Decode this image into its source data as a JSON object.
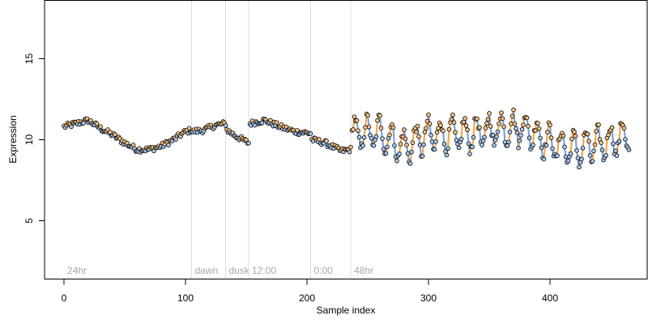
{
  "chart_data": {
    "type": "scatter",
    "title": "",
    "xlabel": "Sample index",
    "ylabel": "Expression",
    "xlim": [
      -16,
      480
    ],
    "ylim": [
      1.4,
      18.6
    ],
    "xticks": [
      0,
      100,
      200,
      300,
      400
    ],
    "yticks": [
      5,
      10,
      15
    ],
    "grid": false,
    "legend": "none",
    "colors": {
      "point_high": "#f5c285",
      "point_low": "#a8c8ec",
      "segment_up": "#f0a850",
      "segment_down": "#7ea4d8",
      "region_line": "#dcdcdc",
      "region_label": "#a8a8a8"
    },
    "regions": [
      {
        "x": 0,
        "label": "24hr"
      },
      {
        "x": 105,
        "label": "dawn"
      },
      {
        "x": 133,
        "label": "dusk"
      },
      {
        "x": 152,
        "label": "12:00"
      },
      {
        "x": 203,
        "label": "0:00"
      },
      {
        "x": 236,
        "label": "48hr"
      }
    ],
    "segments": [
      {
        "x0": 0,
        "x1": 105,
        "anchors": [
          [
            0,
            10.8
          ],
          [
            10,
            11.0
          ],
          [
            20,
            11.2
          ],
          [
            30,
            10.7
          ],
          [
            40,
            10.3
          ],
          [
            50,
            9.8
          ],
          [
            60,
            9.4
          ],
          [
            70,
            9.4
          ],
          [
            80,
            9.6
          ],
          [
            90,
            10.0
          ],
          [
            100,
            10.5
          ],
          [
            105,
            10.6
          ]
        ]
      },
      {
        "x0": 106,
        "x1": 133,
        "anchors": [
          [
            106,
            10.5
          ],
          [
            115,
            10.6
          ],
          [
            125,
            10.9
          ],
          [
            133,
            11.0
          ]
        ]
      },
      {
        "x0": 134,
        "x1": 152,
        "anchors": [
          [
            134,
            10.6
          ],
          [
            142,
            10.2
          ],
          [
            152,
            9.8
          ]
        ]
      },
      {
        "x0": 153,
        "x1": 203,
        "anchors": [
          [
            153,
            11.0
          ],
          [
            165,
            11.2
          ],
          [
            178,
            10.8
          ],
          [
            190,
            10.5
          ],
          [
            203,
            10.4
          ]
        ]
      },
      {
        "x0": 204,
        "x1": 236,
        "anchors": [
          [
            204,
            10.0
          ],
          [
            215,
            9.8
          ],
          [
            228,
            9.3
          ],
          [
            236,
            9.4
          ]
        ]
      },
      {
        "x0": 237,
        "x1": 465,
        "osc": true,
        "period": 10,
        "anchors": [
          [
            237,
            10.4
          ],
          [
            260,
            10.4
          ],
          [
            280,
            9.5
          ],
          [
            300,
            10.3
          ],
          [
            330,
            10.3
          ],
          [
            360,
            10.7
          ],
          [
            380,
            10.7
          ],
          [
            400,
            9.8
          ],
          [
            420,
            9.4
          ],
          [
            440,
            9.7
          ],
          [
            465,
            10.3
          ]
        ]
      }
    ]
  }
}
